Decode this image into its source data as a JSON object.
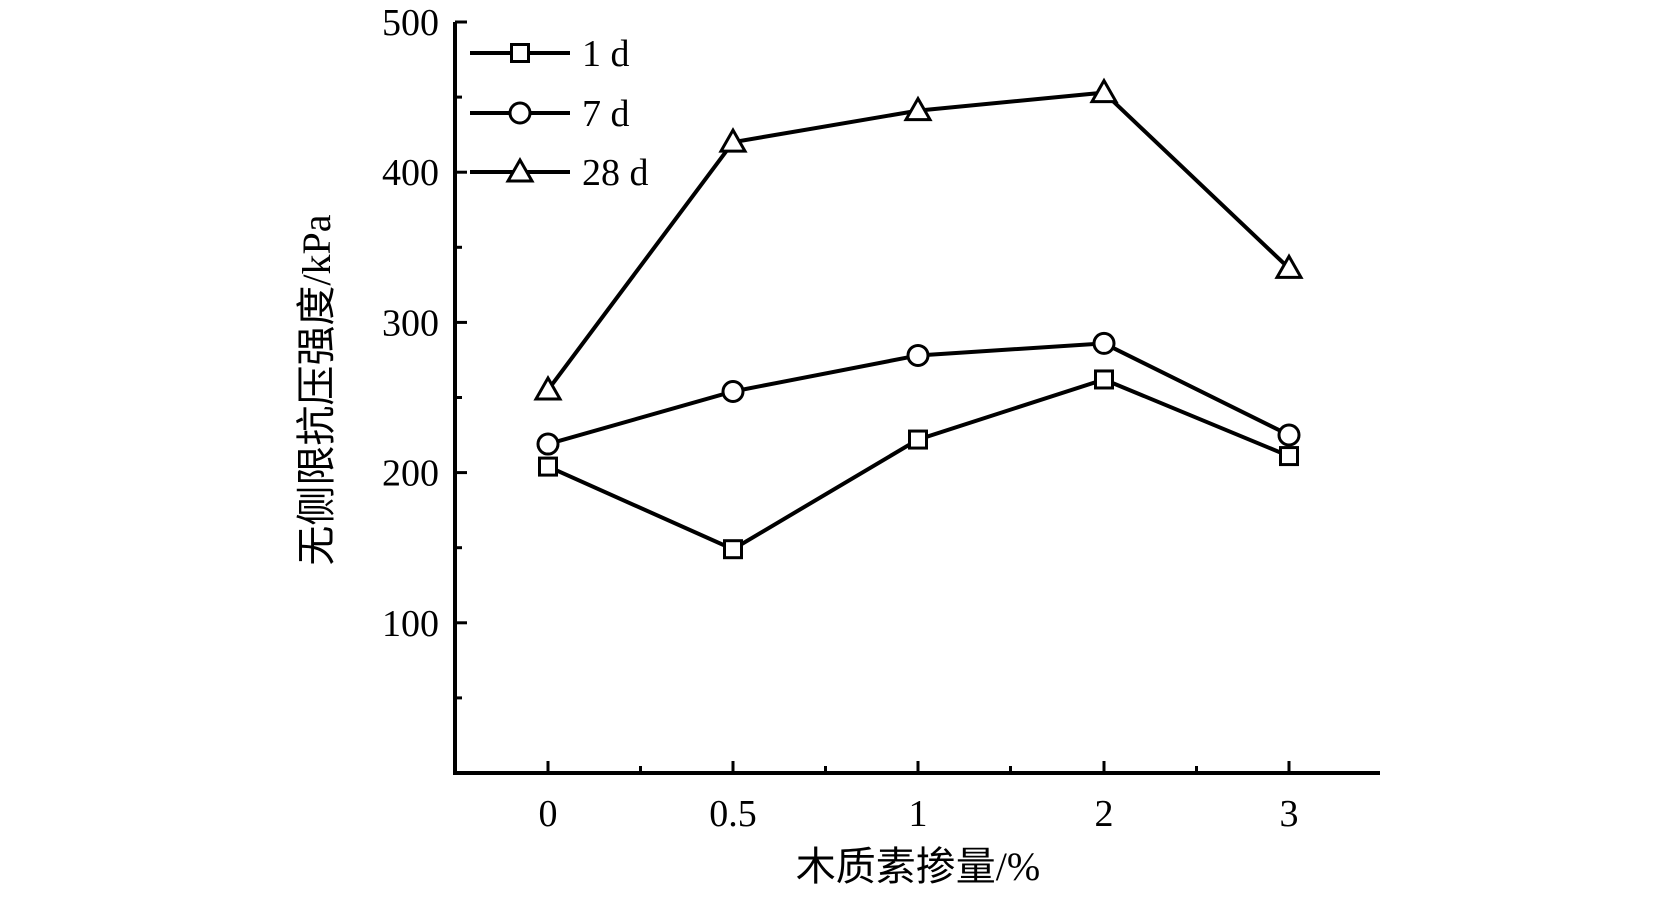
{
  "chart_data": {
    "type": "line",
    "categories": [
      "0",
      "0.5",
      "1",
      "2",
      "3"
    ],
    "series": [
      {
        "name": "1 d",
        "marker": "square",
        "values": [
          204,
          149,
          222,
          262,
          211
        ]
      },
      {
        "name": "7 d",
        "marker": "circle",
        "values": [
          219,
          254,
          278,
          286,
          225
        ]
      },
      {
        "name": "28 d",
        "marker": "triangle",
        "values": [
          255,
          420,
          441,
          453,
          336
        ]
      }
    ],
    "xlabel": "木质素掺量/%",
    "ylabel": "无侧限抗压强度/kPa",
    "ylim": [
      0,
      500
    ],
    "yticks": [
      100,
      200,
      300,
      400,
      500
    ],
    "grid": false,
    "legend_position": "top-left",
    "colors": {
      "line": "#000000",
      "marker_fill": "#ffffff",
      "background": "#ffffff"
    }
  }
}
